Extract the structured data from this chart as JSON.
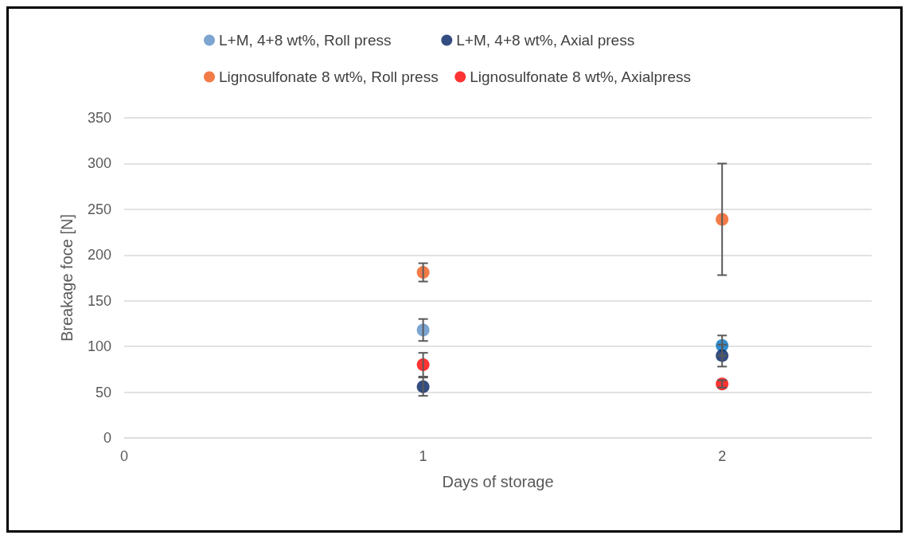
{
  "chart_data": {
    "type": "scatter",
    "xlabel": "Days of storage",
    "ylabel": "Breakage foce [N]",
    "x": [
      1,
      2
    ],
    "xlim": [
      0,
      2.5
    ],
    "xticks": [
      0,
      1,
      2
    ],
    "ylim": [
      0,
      350
    ],
    "yticks": [
      0,
      50,
      100,
      150,
      200,
      250,
      300,
      350
    ],
    "grid": "y",
    "legend": "top",
    "marker": "circle",
    "series": [
      {
        "name": "L+M, 4+8 wt%, Roll press",
        "color": "#5b8fc5",
        "colors": [
          "#5b8fc5",
          "#0070c0"
        ],
        "values": [
          118,
          101
        ],
        "errors": [
          12,
          11
        ]
      },
      {
        "name": "L+M, 4+8 wt%, Axial press",
        "color": "#002060",
        "values": [
          56,
          90
        ],
        "errors": [
          10,
          12
        ]
      },
      {
        "name": "Lignosulfonate 8 wt%, Roll press",
        "color": "#f05a19",
        "values": [
          181,
          239
        ],
        "errors": [
          10,
          61
        ]
      },
      {
        "name": "Lignosulfonate 8 wt%, Axialpress",
        "color": "#ff0000",
        "values": [
          80,
          59
        ],
        "errors": [
          13,
          4
        ]
      }
    ]
  }
}
